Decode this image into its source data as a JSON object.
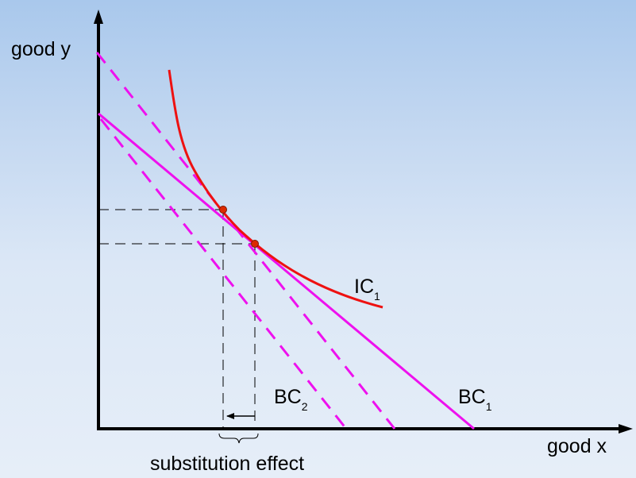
{
  "axes": {
    "y_label": "good y",
    "x_label": "good x"
  },
  "curves": {
    "ic_label": {
      "main": "IC",
      "sub": "1"
    },
    "bc1_label": {
      "main": "BC",
      "sub": "1"
    },
    "bc2_label": {
      "main": "BC",
      "sub": "2"
    }
  },
  "annotation": {
    "substitution_effect": "substitution effect"
  },
  "colors": {
    "indifference_curve": "#ee1111",
    "budget_lines": "#ee11ee",
    "point_fill": "#dd2a00",
    "axes": "#000000",
    "guide_lines": "#000000"
  }
}
